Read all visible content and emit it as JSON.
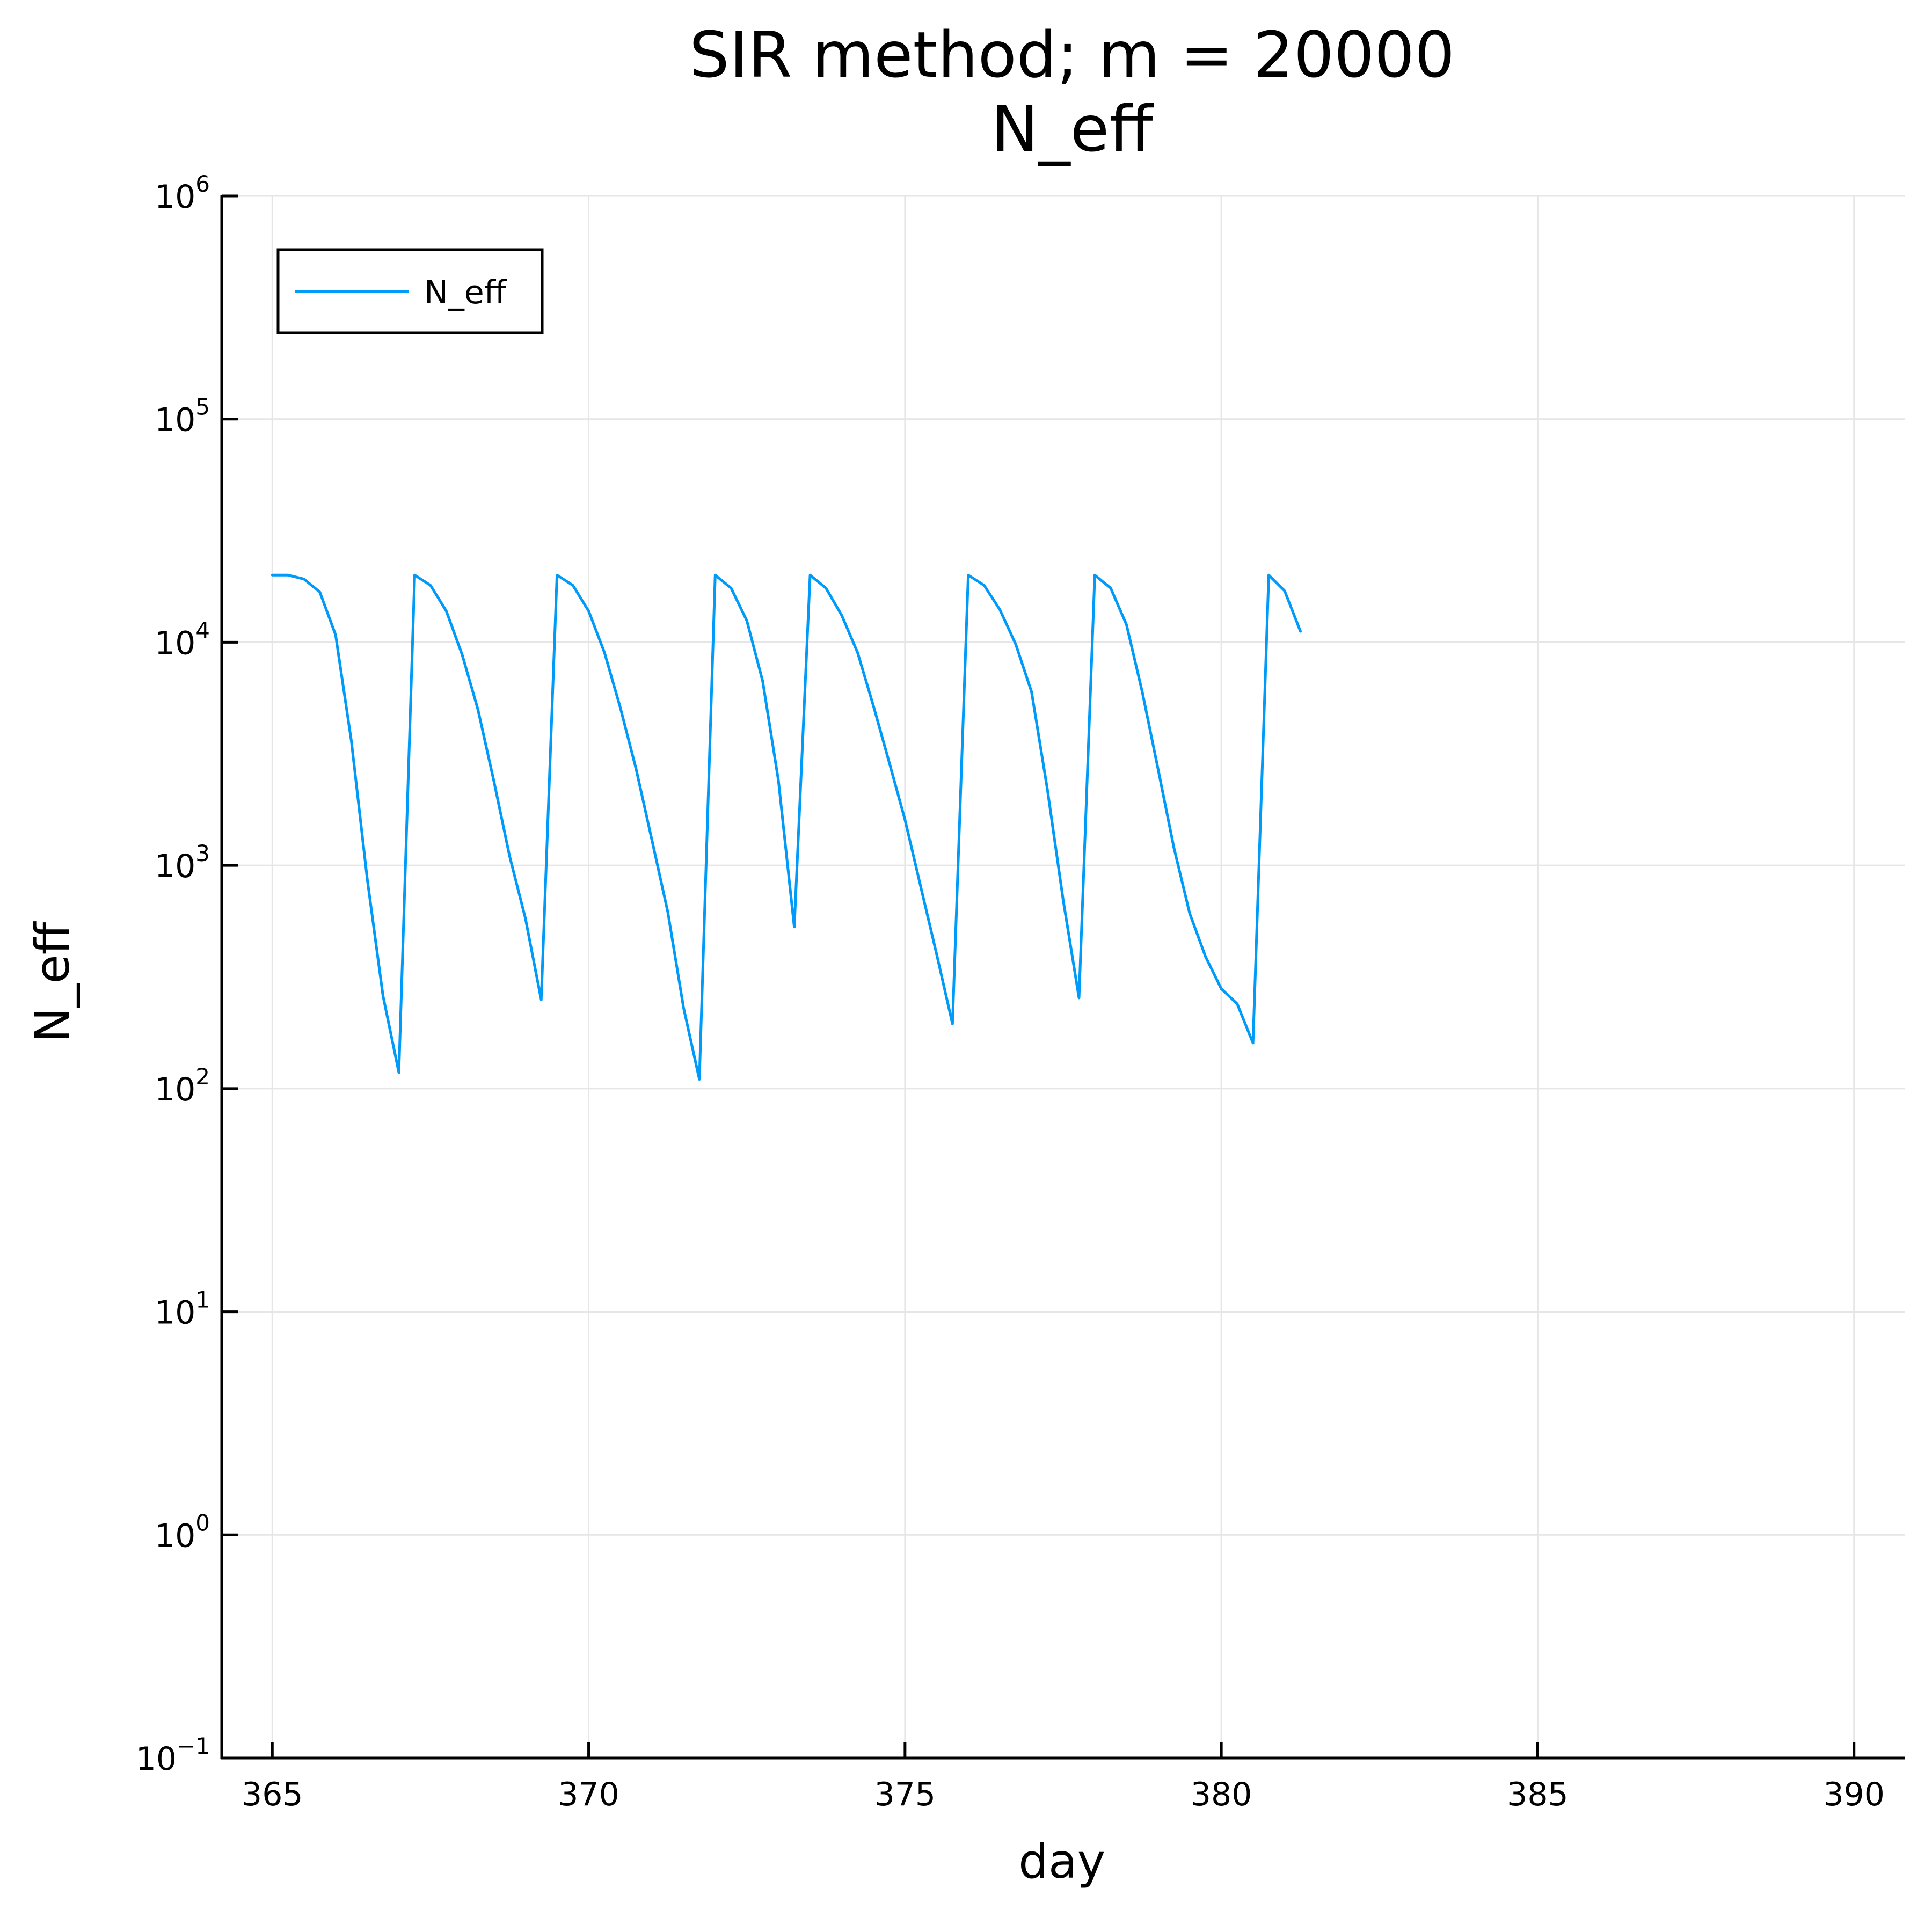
{
  "chart_data": {
    "type": "line",
    "title": "SIR method; m = 20000",
    "subtitle": "N_eff",
    "xlabel": "day",
    "ylabel": "N_eff",
    "xlim": [
      364.2,
      390.8
    ],
    "ylim": [
      0.1,
      1000000
    ],
    "yscale": "log",
    "grid": true,
    "legend": "top-left",
    "x_ticks": [
      "365",
      "370",
      "375",
      "380",
      "385",
      "390"
    ],
    "y_ticks": [
      {
        "base": "10",
        "exp": "−1",
        "value": 0.1
      },
      {
        "base": "10",
        "exp": "0",
        "value": 1
      },
      {
        "base": "10",
        "exp": "1",
        "value": 10
      },
      {
        "base": "10",
        "exp": "2",
        "value": 100
      },
      {
        "base": "10",
        "exp": "3",
        "value": 1000
      },
      {
        "base": "10",
        "exp": "4",
        "value": 10000
      },
      {
        "base": "10",
        "exp": "5",
        "value": 100000
      },
      {
        "base": "10",
        "exp": "6",
        "value": 1000000
      }
    ],
    "series": [
      {
        "name": "N_eff",
        "color": "#009af9",
        "x": [
          365.0,
          365.25,
          365.5,
          365.75,
          366.0,
          366.25,
          366.5,
          366.75,
          367.0,
          367.25,
          367.5,
          367.75,
          368.0,
          368.25,
          368.5,
          368.75,
          369.0,
          369.25,
          369.5,
          369.75,
          370.0,
          370.25,
          370.5,
          370.75,
          371.0,
          371.25,
          371.5,
          371.75,
          372.0,
          372.25,
          372.5,
          372.75,
          373.0,
          373.25,
          373.5,
          373.75,
          374.0,
          374.25,
          374.5,
          374.75,
          375.0,
          375.25,
          375.5,
          375.75,
          376.0,
          376.25,
          376.5,
          376.75,
          377.0,
          377.25,
          377.5,
          377.75,
          378.0,
          378.25,
          378.5,
          378.75,
          379.0,
          379.25,
          379.5,
          379.75,
          380.0,
          380.25,
          380.5,
          380.75,
          381.0,
          381.25
        ],
        "y": [
          20000,
          20000,
          19200,
          16800,
          10800,
          3600,
          870,
          260,
          118,
          20000,
          18000,
          13800,
          8800,
          5000,
          2400,
          1100,
          580,
          250,
          20000,
          18000,
          13800,
          9000,
          5100,
          2700,
          1300,
          620,
          230,
          110,
          20000,
          17500,
          12500,
          6700,
          2400,
          530,
          20000,
          17500,
          13200,
          9000,
          5200,
          2900,
          1600,
          800,
          400,
          195,
          20000,
          18000,
          14000,
          9800,
          6000,
          2200,
          700,
          255,
          20000,
          17500,
          12000,
          6000,
          2700,
          1200,
          610,
          390,
          280,
          240,
          160,
          20000,
          17000,
          11200
        ]
      }
    ]
  }
}
